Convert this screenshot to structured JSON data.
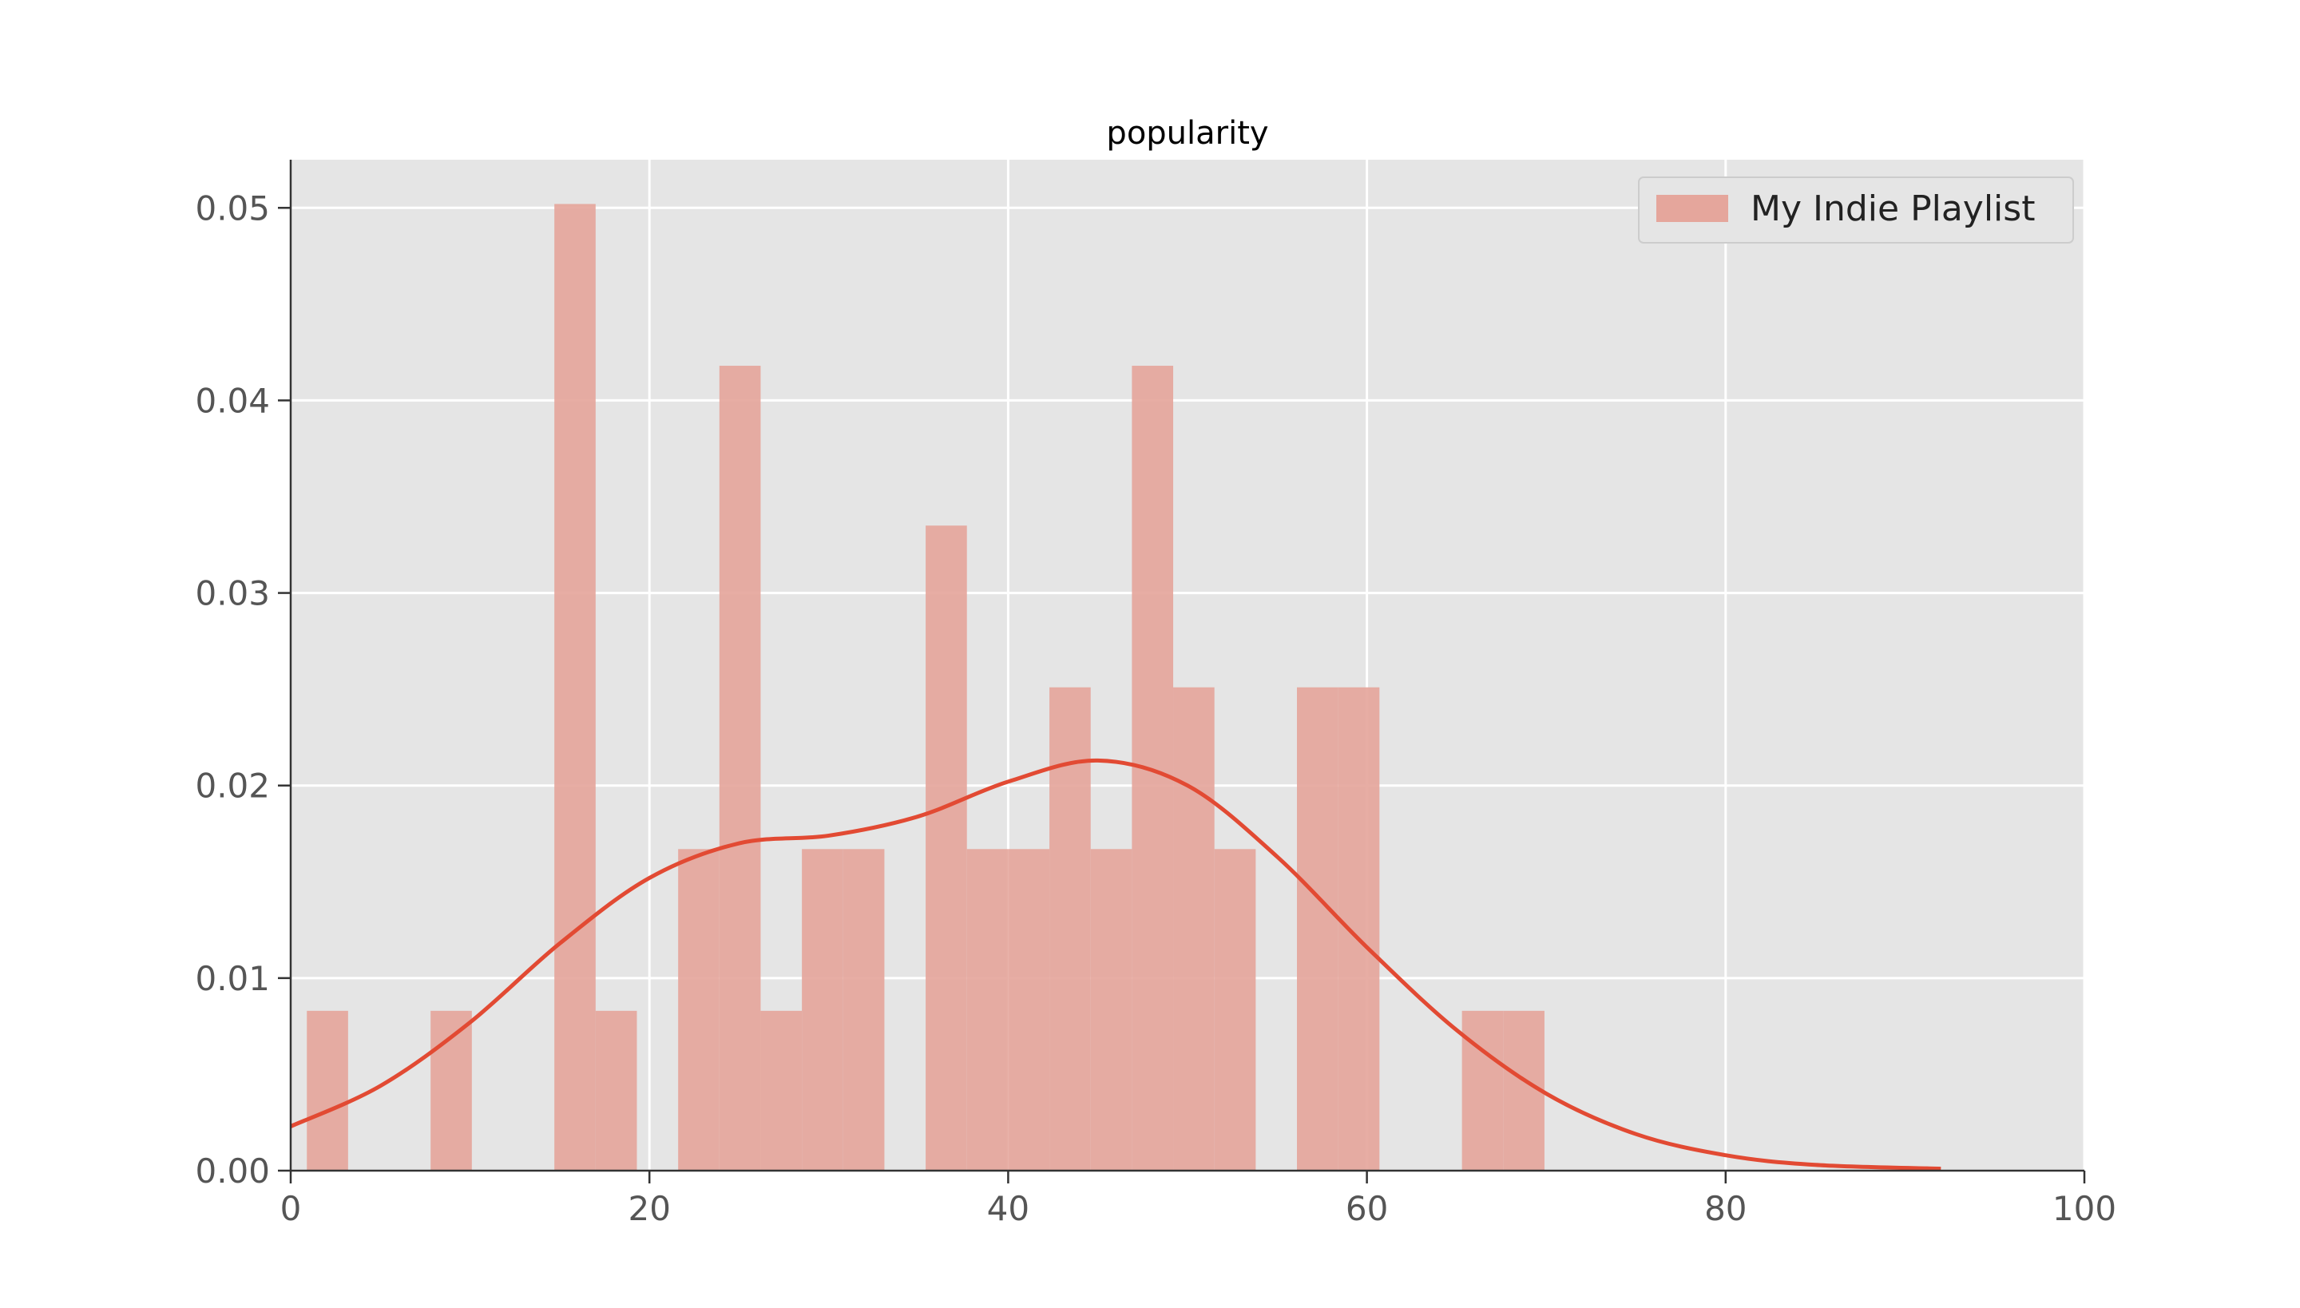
{
  "chart_data": {
    "type": "bar",
    "title": "popularity",
    "xlabel": "",
    "ylabel": "",
    "xlim": [
      0,
      100
    ],
    "ylim": [
      0,
      0.0525
    ],
    "xticks": [
      0,
      20,
      40,
      60,
      80,
      100
    ],
    "xtick_labels": [
      "0",
      "20",
      "40",
      "60",
      "80",
      "100"
    ],
    "yticks": [
      0.0,
      0.01,
      0.02,
      0.03,
      0.04,
      0.05
    ],
    "ytick_labels": [
      "0.00",
      "0.01",
      "0.02",
      "0.03",
      "0.04",
      "0.05"
    ],
    "grid": true,
    "legend": {
      "position": "top-right",
      "entries": [
        "My Indie Playlist"
      ]
    },
    "series": [
      {
        "name": "My Indie Playlist",
        "kind": "histogram",
        "color": "#e5a69c",
        "bins": [
          {
            "x0": 0.9,
            "x1": 3.2,
            "value": 0.0083
          },
          {
            "x0": 7.8,
            "x1": 10.1,
            "value": 0.0083
          },
          {
            "x0": 14.7,
            "x1": 17.0,
            "value": 0.0502
          },
          {
            "x0": 17.0,
            "x1": 19.3,
            "value": 0.0083
          },
          {
            "x0": 21.6,
            "x1": 23.9,
            "value": 0.0167
          },
          {
            "x0": 23.9,
            "x1": 26.2,
            "value": 0.0418
          },
          {
            "x0": 26.2,
            "x1": 28.5,
            "value": 0.0083
          },
          {
            "x0": 28.5,
            "x1": 30.8,
            "value": 0.0167
          },
          {
            "x0": 30.8,
            "x1": 33.1,
            "value": 0.0167
          },
          {
            "x0": 35.4,
            "x1": 37.7,
            "value": 0.0335
          },
          {
            "x0": 37.7,
            "x1": 40.0,
            "value": 0.0167
          },
          {
            "x0": 40.0,
            "x1": 42.3,
            "value": 0.0167
          },
          {
            "x0": 42.3,
            "x1": 44.6,
            "value": 0.0251
          },
          {
            "x0": 44.6,
            "x1": 46.9,
            "value": 0.0167
          },
          {
            "x0": 46.9,
            "x1": 49.2,
            "value": 0.0418
          },
          {
            "x0": 49.2,
            "x1": 51.5,
            "value": 0.0251
          },
          {
            "x0": 51.5,
            "x1": 53.8,
            "value": 0.0167
          },
          {
            "x0": 56.1,
            "x1": 58.4,
            "value": 0.0251
          },
          {
            "x0": 58.4,
            "x1": 60.7,
            "value": 0.0251
          },
          {
            "x0": 65.3,
            "x1": 67.6,
            "value": 0.0083
          },
          {
            "x0": 67.6,
            "x1": 69.9,
            "value": 0.0083
          }
        ]
      },
      {
        "kind": "kde",
        "color": "#e24a33",
        "points": [
          [
            0,
            0.0023
          ],
          [
            5,
            0.0044
          ],
          [
            10,
            0.0077
          ],
          [
            15,
            0.0118
          ],
          [
            20,
            0.0152
          ],
          [
            25,
            0.017
          ],
          [
            30,
            0.0174
          ],
          [
            35,
            0.0184
          ],
          [
            40,
            0.0202
          ],
          [
            45,
            0.0213
          ],
          [
            50,
            0.02
          ],
          [
            55,
            0.0163
          ],
          [
            60,
            0.0116
          ],
          [
            65,
            0.0073
          ],
          [
            70,
            0.004
          ],
          [
            75,
            0.0019
          ],
          [
            80,
            0.0008
          ],
          [
            85,
            0.0003
          ],
          [
            92,
            0.0001
          ]
        ]
      }
    ]
  }
}
